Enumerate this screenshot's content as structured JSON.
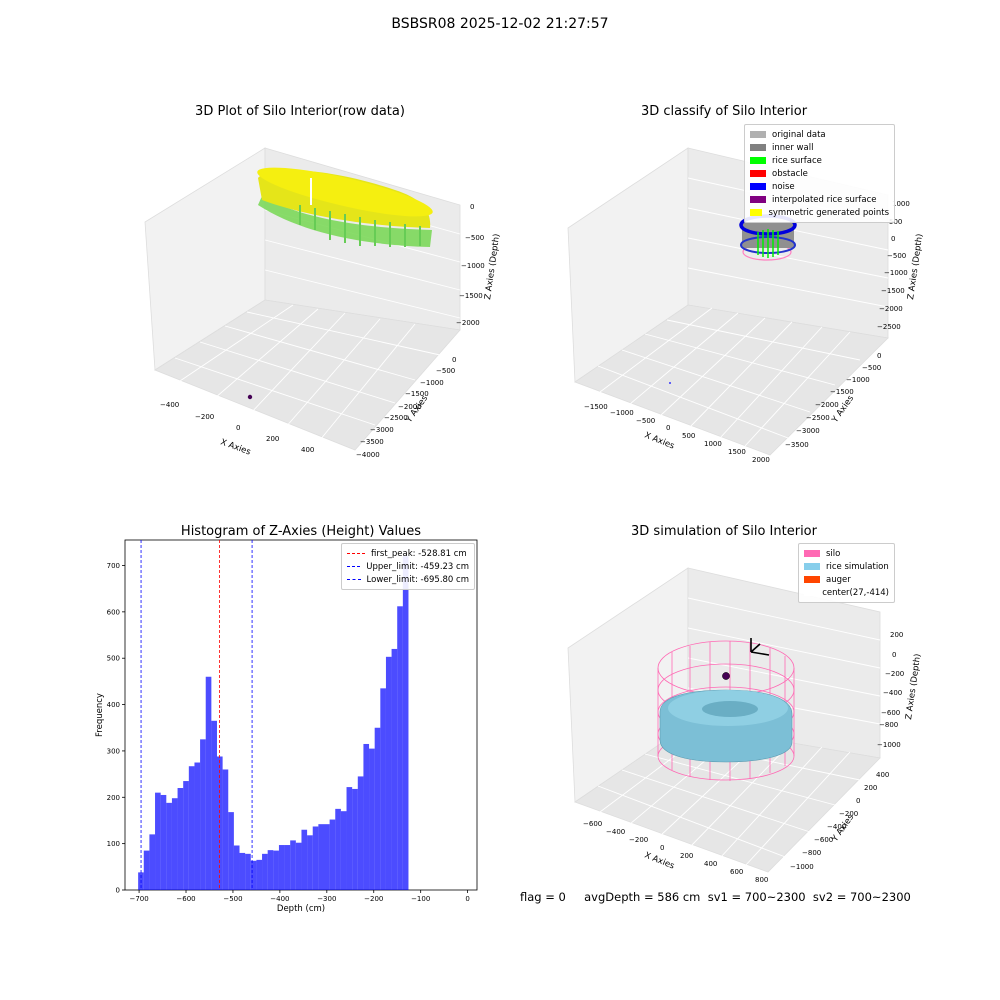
{
  "figure": {
    "title": "BSBSR08 2025-12-02 21:27:57",
    "status": "flag = 0     avgDepth = 586 cm  sv1 = 700~2300  sv2 = 700~2300"
  },
  "panels": {
    "raw": {
      "title": "3D Plot of Silo Interior(row data)",
      "xlabel": "X Axies",
      "ylabel": "Y Axies",
      "zlabel": "Z Axies (Depth)",
      "xticks": [
        "−400",
        "−200",
        "0",
        "200",
        "400"
      ],
      "yticks": [
        "0",
        "−500",
        "−1000",
        "−1500",
        "−2000",
        "−2500",
        "−3000",
        "−3500",
        "−4000"
      ],
      "zticks": [
        "0",
        "−500",
        "−1000",
        "−1500",
        "−2000"
      ]
    },
    "classify": {
      "title": "3D classify of Silo Interior",
      "xlabel": "X Axies",
      "ylabel": "Y Axies",
      "zlabel": "Z Axies (Depth)",
      "xticks": [
        "−1500",
        "−1000",
        "−500",
        "0",
        "500",
        "1000",
        "1500",
        "2000"
      ],
      "yticks": [
        "0",
        "−500",
        "−1000",
        "−1500",
        "−2000",
        "−2500",
        "−3000",
        "−3500"
      ],
      "zticks": [
        "1000",
        "500",
        "0",
        "−500",
        "−1000",
        "−1500",
        "−2000",
        "−2500"
      ],
      "legend": [
        {
          "label": "original data",
          "color": "#b0b0b0"
        },
        {
          "label": "inner wall",
          "color": "#808080"
        },
        {
          "label": "rice surface",
          "color": "#00ff00"
        },
        {
          "label": "obstacle",
          "color": "#ff0000"
        },
        {
          "label": "noise",
          "color": "#0000ff"
        },
        {
          "label": "interpolated rice surface",
          "color": "#800080"
        },
        {
          "label": "symmetric generated points",
          "color": "#ffff00"
        }
      ]
    },
    "simulation": {
      "title": "3D simulation of Silo Interior",
      "xlabel": "X Axies",
      "ylabel": "Y Axies",
      "zlabel": "Z Axies (Depth)",
      "xticks": [
        "−600",
        "−400",
        "−200",
        "0",
        "200",
        "400",
        "600",
        "800"
      ],
      "yticks": [
        "400",
        "200",
        "0",
        "−200",
        "−400",
        "−600",
        "−800",
        "−1000"
      ],
      "zticks": [
        "200",
        "0",
        "−200",
        "−400",
        "−600",
        "−800",
        "−1000"
      ],
      "legend": [
        {
          "label": "silo",
          "color": "#ff69b4"
        },
        {
          "label": "rice simulation",
          "color": "#87ceeb"
        },
        {
          "label": "auger",
          "color": "#ff4500"
        },
        {
          "label": "center(27,-414)",
          "color": "#ffffff"
        }
      ]
    }
  },
  "chart_data": [
    {
      "type": "scatter",
      "title": "3D Plot of Silo Interior(row data)",
      "xlabel": "X Axies",
      "ylabel": "Y Axies",
      "zlabel": "Z Axies (Depth)",
      "xlim": [
        -500,
        500
      ],
      "ylim": [
        -4000,
        0
      ],
      "zlim": [
        -2200,
        0
      ],
      "grid": true
    },
    {
      "type": "scatter",
      "title": "3D classify of Silo Interior",
      "xlabel": "X Axies",
      "ylabel": "Y Axies",
      "zlabel": "Z Axies (Depth)",
      "xlim": [
        -1800,
        2000
      ],
      "ylim": [
        -3700,
        0
      ],
      "zlim": [
        -2800,
        1100
      ],
      "legend_position": "top-right",
      "grid": true
    },
    {
      "type": "bar",
      "title": "Histogram of Z-Axies (Height) Values",
      "xlabel": "Depth (cm)",
      "ylabel": "Frequency",
      "bar_color": "#0000ff",
      "xlim": [
        -730,
        20
      ],
      "ylim": [
        0,
        755
      ],
      "xticks": [
        -700,
        -600,
        -500,
        -400,
        -300,
        -200,
        -100,
        0
      ],
      "yticks": [
        0,
        100,
        200,
        300,
        400,
        500,
        600,
        700
      ],
      "bins": [
        {
          "x0": -702,
          "x1": -690,
          "v": 38
        },
        {
          "x0": -690,
          "x1": -678,
          "v": 85
        },
        {
          "x0": -678,
          "x1": -666,
          "v": 120
        },
        {
          "x0": -666,
          "x1": -654,
          "v": 210
        },
        {
          "x0": -654,
          "x1": -642,
          "v": 205
        },
        {
          "x0": -642,
          "x1": -630,
          "v": 188
        },
        {
          "x0": -630,
          "x1": -618,
          "v": 198
        },
        {
          "x0": -618,
          "x1": -606,
          "v": 220
        },
        {
          "x0": -606,
          "x1": -594,
          "v": 235
        },
        {
          "x0": -594,
          "x1": -582,
          "v": 267
        },
        {
          "x0": -582,
          "x1": -570,
          "v": 275
        },
        {
          "x0": -570,
          "x1": -558,
          "v": 325
        },
        {
          "x0": -558,
          "x1": -546,
          "v": 460
        },
        {
          "x0": -546,
          "x1": -534,
          "v": 365
        },
        {
          "x0": -534,
          "x1": -522,
          "v": 288
        },
        {
          "x0": -522,
          "x1": -510,
          "v": 260
        },
        {
          "x0": -510,
          "x1": -498,
          "v": 168
        },
        {
          "x0": -498,
          "x1": -486,
          "v": 96
        },
        {
          "x0": -486,
          "x1": -474,
          "v": 80
        },
        {
          "x0": -474,
          "x1": -462,
          "v": 78
        },
        {
          "x0": -462,
          "x1": -450,
          "v": 63
        },
        {
          "x0": -450,
          "x1": -438,
          "v": 65
        },
        {
          "x0": -438,
          "x1": -426,
          "v": 78
        },
        {
          "x0": -426,
          "x1": -414,
          "v": 86
        },
        {
          "x0": -414,
          "x1": -402,
          "v": 85
        },
        {
          "x0": -402,
          "x1": -390,
          "v": 97
        },
        {
          "x0": -390,
          "x1": -378,
          "v": 97
        },
        {
          "x0": -378,
          "x1": -366,
          "v": 107
        },
        {
          "x0": -366,
          "x1": -354,
          "v": 102
        },
        {
          "x0": -354,
          "x1": -342,
          "v": 130
        },
        {
          "x0": -342,
          "x1": -330,
          "v": 118
        },
        {
          "x0": -330,
          "x1": -318,
          "v": 137
        },
        {
          "x0": -318,
          "x1": -306,
          "v": 142
        },
        {
          "x0": -306,
          "x1": -294,
          "v": 142
        },
        {
          "x0": -294,
          "x1": -282,
          "v": 152
        },
        {
          "x0": -282,
          "x1": -270,
          "v": 175
        },
        {
          "x0": -270,
          "x1": -258,
          "v": 170
        },
        {
          "x0": -258,
          "x1": -246,
          "v": 222
        },
        {
          "x0": -246,
          "x1": -234,
          "v": 218
        },
        {
          "x0": -234,
          "x1": -222,
          "v": 245
        },
        {
          "x0": -222,
          "x1": -210,
          "v": 315
        },
        {
          "x0": -210,
          "x1": -198,
          "v": 305
        },
        {
          "x0": -198,
          "x1": -186,
          "v": 350
        },
        {
          "x0": -186,
          "x1": -174,
          "v": 435
        },
        {
          "x0": -174,
          "x1": -162,
          "v": 503
        },
        {
          "x0": -162,
          "x1": -150,
          "v": 520
        },
        {
          "x0": -150,
          "x1": -138,
          "v": 612
        },
        {
          "x0": -138,
          "x1": -126,
          "v": 720
        }
      ],
      "vlines": [
        {
          "label": "first_peak: -528.81 cm",
          "x": -528.81,
          "color": "#ff0000"
        },
        {
          "label": "Upper_limit: -459.23 cm",
          "x": -459.23,
          "color": "#0000ff"
        },
        {
          "label": "Lower_limit: -695.80 cm",
          "x": -695.8,
          "color": "#0000ff"
        }
      ],
      "legend_position": "top-right"
    },
    {
      "type": "scatter",
      "title": "3D simulation of Silo Interior",
      "xlabel": "X Axies",
      "ylabel": "Y Axies",
      "zlabel": "Z Axies (Depth)",
      "xlim": [
        -700,
        850
      ],
      "ylim": [
        -1100,
        450
      ],
      "zlim": [
        -1150,
        350
      ],
      "center": [
        27,
        -414
      ],
      "legend_position": "top-right",
      "grid": true
    }
  ]
}
